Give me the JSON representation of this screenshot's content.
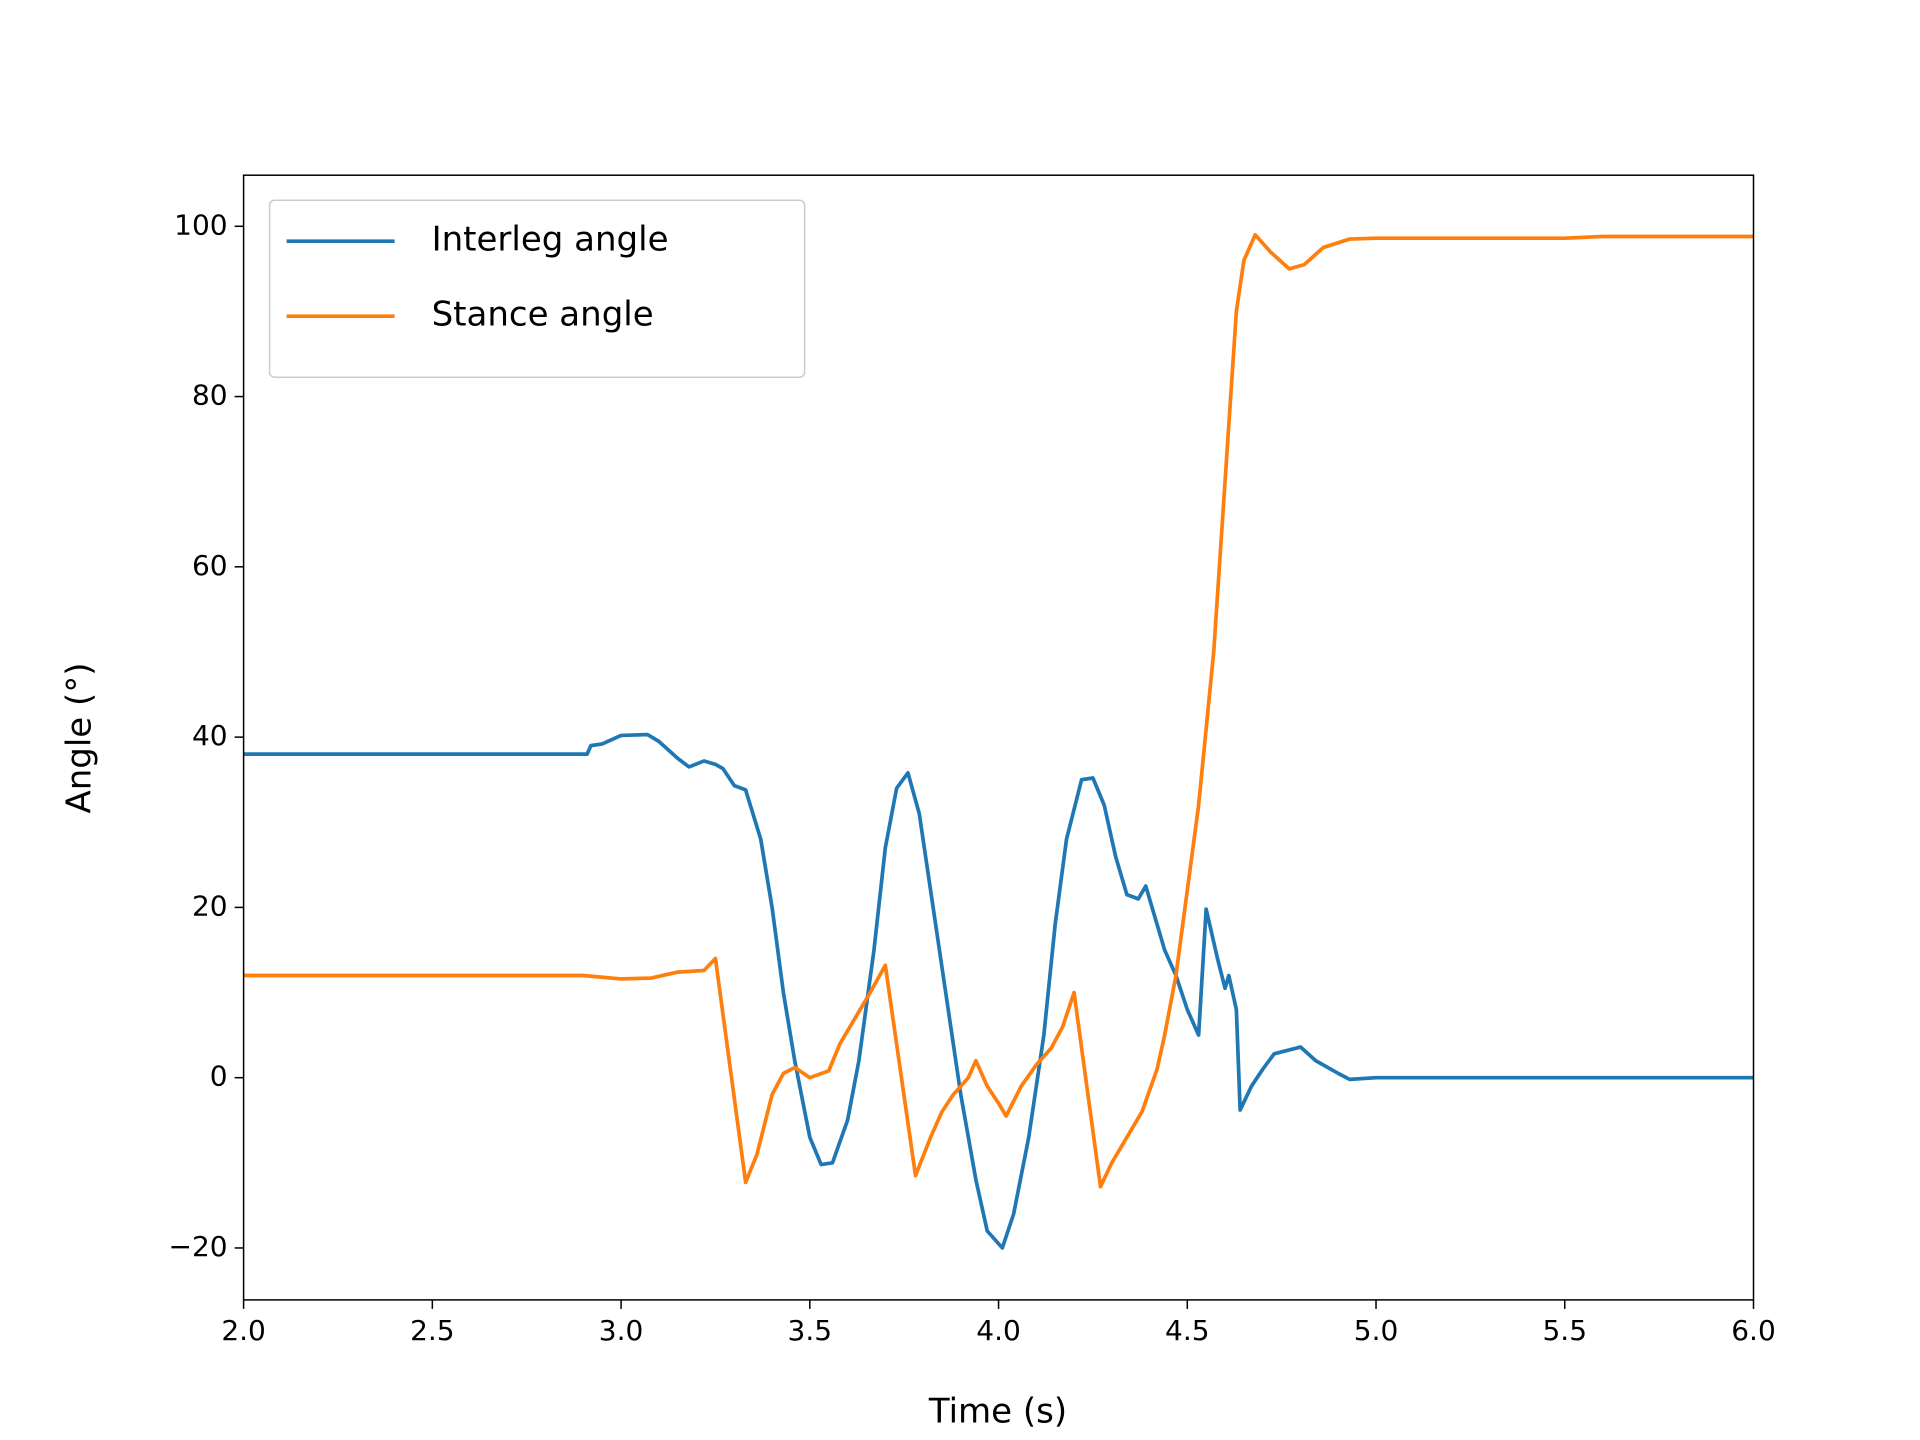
{
  "chart_data": {
    "type": "line",
    "x_label": "Time (s)",
    "y_label": "Angle (°)",
    "xlim": [
      2.0,
      6.0
    ],
    "ylim": [
      -26.1,
      106
    ],
    "xticks": [
      {
        "value": 2,
        "label": "2.0"
      },
      2.5,
      {
        "value": 3,
        "label": "3.0"
      },
      3.5,
      {
        "value": 4,
        "label": "4.0"
      },
      4.5,
      {
        "value": 5,
        "label": "5.0"
      },
      5.5,
      {
        "value": 6,
        "label": "6.0"
      }
    ],
    "yticks": [
      {
        "value": -20,
        "label": "−20"
      },
      0,
      20,
      40,
      60,
      80,
      100
    ],
    "legend": "upper left",
    "series": [
      {
        "name": "Interleg angle",
        "color": "#1f77b4",
        "x": [
          2.0,
          2.91,
          2.92,
          2.95,
          3.0,
          3.07,
          3.1,
          3.15,
          3.18,
          3.22,
          3.25,
          3.27,
          3.3,
          3.33,
          3.37,
          3.4,
          3.43,
          3.46,
          3.5,
          3.53,
          3.56,
          3.6,
          3.63,
          3.67,
          3.7,
          3.73,
          3.76,
          3.79,
          3.82,
          3.86,
          3.9,
          3.94,
          3.97,
          4.01,
          4.04,
          4.08,
          4.12,
          4.15,
          4.18,
          4.22,
          4.25,
          4.28,
          4.31,
          4.34,
          4.37,
          4.39,
          4.42,
          4.44,
          4.47,
          4.5,
          4.53,
          4.55,
          4.58,
          4.6,
          4.61,
          4.63,
          4.64,
          4.67,
          4.7,
          4.73,
          4.8,
          4.84,
          4.9,
          4.93,
          5.0,
          6.0
        ],
        "values": [
          38,
          38,
          39,
          39.2,
          40.2,
          40.3,
          39.5,
          37.5,
          36.5,
          37.2,
          36.8,
          36.3,
          34.3,
          33.8,
          28,
          20,
          10,
          2,
          -7,
          -10.2,
          -10,
          -5,
          2,
          15,
          27,
          34,
          35.8,
          31,
          22,
          10,
          -2,
          -12,
          -18,
          -20,
          -16,
          -7,
          5,
          18,
          28,
          35,
          35.2,
          32,
          26,
          21.5,
          21,
          22.5,
          18,
          15,
          12,
          8,
          5,
          19.8,
          14,
          10.5,
          12,
          8,
          -3.8,
          -1,
          1,
          2.8,
          3.6,
          2,
          0.5,
          -0.2,
          0,
          0
        ]
      },
      {
        "name": "Stance angle",
        "color": "#ff7f0e",
        "x": [
          2.0,
          2.9,
          2.95,
          3.0,
          3.08,
          3.15,
          3.22,
          3.25,
          3.33,
          3.36,
          3.4,
          3.43,
          3.46,
          3.5,
          3.55,
          3.58,
          3.62,
          3.66,
          3.7,
          3.78,
          3.82,
          3.85,
          3.88,
          3.92,
          3.94,
          3.97,
          4.0,
          4.02,
          4.06,
          4.1,
          4.14,
          4.17,
          4.2,
          4.27,
          4.3,
          4.34,
          4.38,
          4.42,
          4.44,
          4.47,
          4.5,
          4.53,
          4.57,
          4.6,
          4.63,
          4.65,
          4.68,
          4.72,
          4.77,
          4.81,
          4.86,
          4.93,
          5.0,
          5.5,
          5.6,
          6.0
        ],
        "values": [
          12,
          12,
          11.8,
          11.6,
          11.7,
          12.4,
          12.6,
          14,
          -12.3,
          -9,
          -2,
          0.5,
          1.2,
          0,
          0.8,
          4,
          7,
          10,
          13.2,
          -11.5,
          -7,
          -4,
          -2,
          0,
          2,
          -1,
          -3,
          -4.5,
          -1,
          1.5,
          3.5,
          6,
          10,
          -12.8,
          -10,
          -7,
          -4,
          1,
          5,
          12,
          22,
          32,
          50,
          70,
          90,
          96,
          99,
          97,
          95,
          95.5,
          97.5,
          98.5,
          98.6,
          98.6,
          98.8,
          98.8
        ]
      }
    ]
  }
}
